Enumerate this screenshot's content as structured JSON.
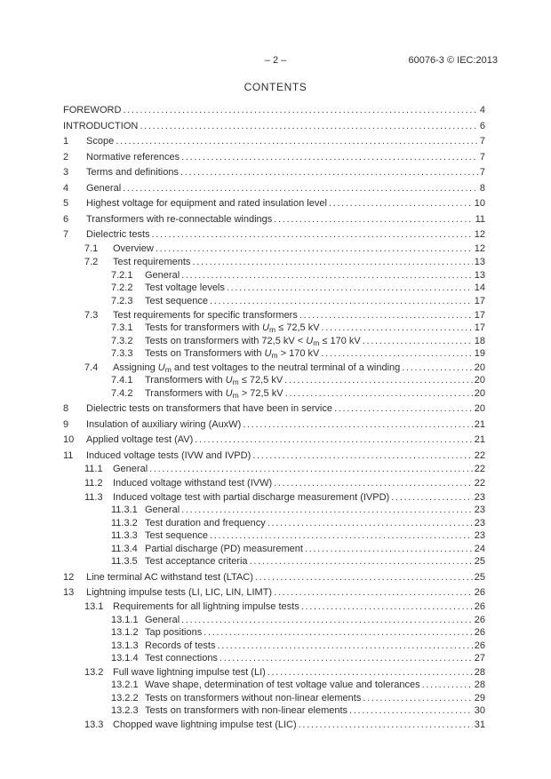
{
  "header": {
    "page_number": "– 2 –",
    "doc_ref": "60076-3 © IEC:2013"
  },
  "title": "CONTENTS",
  "colors": {
    "background": "#ffffff",
    "text": "#2e2e2e"
  },
  "toc": [
    {
      "num": "",
      "title": "FOREWORD",
      "page": "4",
      "level": 0
    },
    {
      "num": "",
      "title": "INTRODUCTION",
      "page": "6",
      "level": 0
    },
    {
      "num": "1",
      "title": "Scope",
      "page": "7",
      "level": 1
    },
    {
      "num": "2",
      "title": "Normative references",
      "page": "7",
      "level": 1
    },
    {
      "num": "3",
      "title": "Terms and definitions",
      "page": "7",
      "level": 1
    },
    {
      "num": "4",
      "title": "General",
      "page": "8",
      "level": 1
    },
    {
      "num": "5",
      "title": "Highest voltage for equipment and rated insulation level",
      "page": "10",
      "level": 1
    },
    {
      "num": "6",
      "title": "Transformers with re-connectable windings",
      "page": "11",
      "level": 1
    },
    {
      "num": "7",
      "title": "Dielectric tests",
      "page": "12",
      "level": 1
    },
    {
      "num": "7.1",
      "title": "Overview",
      "page": "12",
      "level": 2
    },
    {
      "num": "7.2",
      "title": "Test requirements",
      "page": "13",
      "level": 2
    },
    {
      "num": "7.2.1",
      "title": "General",
      "page": "13",
      "level": 3
    },
    {
      "num": "7.2.2",
      "title": "Test voltage levels",
      "page": "14",
      "level": 3
    },
    {
      "num": "7.2.3",
      "title": "Test sequence",
      "page": "17",
      "level": 3
    },
    {
      "num": "7.3",
      "title": "Test requirements for specific transformers",
      "page": "17",
      "level": 2
    },
    {
      "num": "7.3.1",
      "title": "Tests for transformers with {Um} ≤ 72,5 kV",
      "page": "17",
      "level": 3
    },
    {
      "num": "7.3.2",
      "title": "Tests on transformers with 72,5 kV < {Um} ≤ 170 kV",
      "page": "18",
      "level": 3
    },
    {
      "num": "7.3.3",
      "title": "Tests on Transformers with {Um} > 170 kV",
      "page": "19",
      "level": 3
    },
    {
      "num": "7.4",
      "title": "Assigning {Um} and test voltages to the neutral terminal of a winding",
      "page": "20",
      "level": 2
    },
    {
      "num": "7.4.1",
      "title": "Transformers with {Um} ≤ 72,5 kV",
      "page": "20",
      "level": 3
    },
    {
      "num": "7.4.2",
      "title": "Transformers with {Um} > 72,5 kV",
      "page": "20",
      "level": 3
    },
    {
      "num": "8",
      "title": "Dielectric tests on transformers that have been in service",
      "page": "20",
      "level": 1
    },
    {
      "num": "9",
      "title": "Insulation of auxiliary wiring (AuxW)",
      "page": "21",
      "level": 1
    },
    {
      "num": "10",
      "title": "Applied voltage test (AV)",
      "page": "21",
      "level": 1
    },
    {
      "num": "11",
      "title": "Induced voltage tests (IVW and IVPD)",
      "page": "22",
      "level": 1
    },
    {
      "num": "11.1",
      "title": "General",
      "page": "22",
      "level": 2
    },
    {
      "num": "11.2",
      "title": "Induced voltage withstand test (IVW)",
      "page": "22",
      "level": 2
    },
    {
      "num": "11.3",
      "title": "Induced voltage test with partial discharge measurement (IVPD)",
      "page": "23",
      "level": 2
    },
    {
      "num": "11.3.1",
      "title": "General",
      "page": "23",
      "level": 3
    },
    {
      "num": "11.3.2",
      "title": "Test duration and frequency",
      "page": "23",
      "level": 3
    },
    {
      "num": "11.3.3",
      "title": "Test sequence",
      "page": "23",
      "level": 3
    },
    {
      "num": "11.3.4",
      "title": "Partial discharge (PD) measurement",
      "page": "24",
      "level": 3
    },
    {
      "num": "11.3.5",
      "title": "Test acceptance criteria",
      "page": "25",
      "level": 3
    },
    {
      "num": "12",
      "title": "Line terminal AC withstand test (LTAC)",
      "page": "25",
      "level": 1
    },
    {
      "num": "13",
      "title": "Lightning impulse tests (LI, LIC, LIN, LIMT)",
      "page": "26",
      "level": 1
    },
    {
      "num": "13.1",
      "title": "Requirements for all lightning impulse tests",
      "page": "26",
      "level": 2
    },
    {
      "num": "13.1.1",
      "title": "General",
      "page": "26",
      "level": 3
    },
    {
      "num": "13.1.2",
      "title": "Tap positions",
      "page": "26",
      "level": 3
    },
    {
      "num": "13.1.3",
      "title": "Records of tests",
      "page": "26",
      "level": 3
    },
    {
      "num": "13.1.4",
      "title": "Test connections",
      "page": "27",
      "level": 3
    },
    {
      "num": "13.2",
      "title": "Full wave lightning impulse test (LI)",
      "page": "28",
      "level": 2
    },
    {
      "num": "13.2.1",
      "title": "Wave shape, determination of test voltage value and tolerances",
      "page": "28",
      "level": 3
    },
    {
      "num": "13.2.2",
      "title": "Tests on transformers without non-linear elements",
      "page": "29",
      "level": 3
    },
    {
      "num": "13.2.3",
      "title": "Tests on transformers with non-linear elements",
      "page": "30",
      "level": 3
    },
    {
      "num": "13.3",
      "title": "Chopped wave lightning impulse test (LIC)",
      "page": "31",
      "level": 2
    }
  ]
}
